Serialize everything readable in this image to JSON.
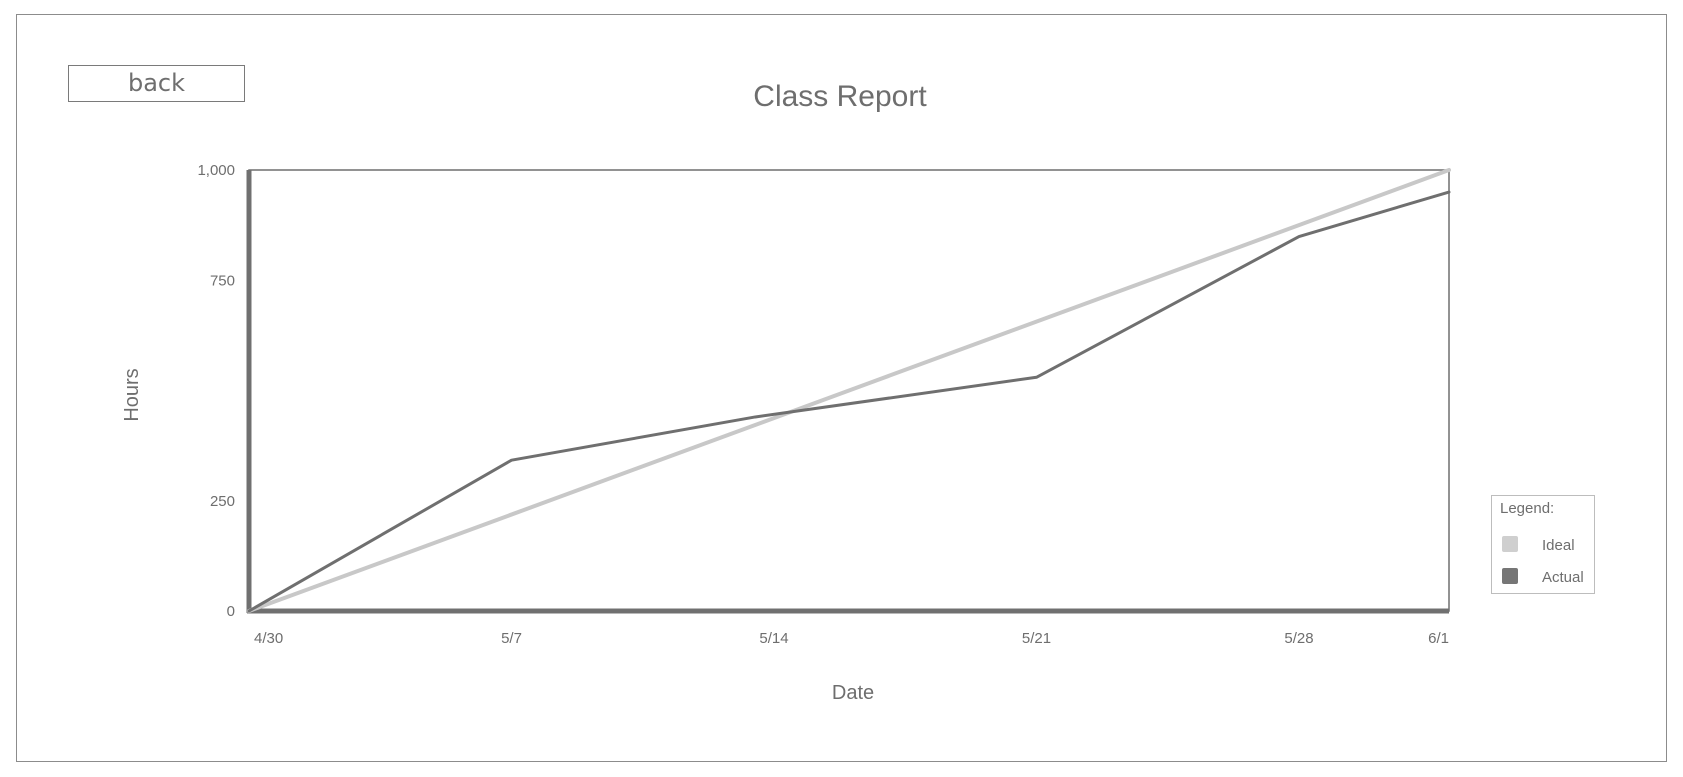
{
  "back_button": {
    "label": "back"
  },
  "chart_data": {
    "type": "line",
    "title": "Class Report",
    "xlabel": "Date",
    "ylabel": "Hours",
    "x": [
      "4/30",
      "5/7",
      "5/14",
      "5/21",
      "5/28",
      "6/1"
    ],
    "x_days": [
      0,
      7,
      14,
      21,
      28,
      32
    ],
    "y_tick_values": [
      0,
      250,
      750,
      1000
    ],
    "y_tick_labels": [
      "0",
      "250",
      "750",
      "1,000"
    ],
    "ylim": [
      0,
      1000
    ],
    "grid": false,
    "legend_position": "right",
    "legend_title": "Legend:",
    "series": [
      {
        "name": "Ideal",
        "color": "#c8c8c8",
        "points": [
          [
            0,
            0
          ],
          [
            32,
            1000
          ]
        ]
      },
      {
        "name": "Actual",
        "color": "#6f6f6f",
        "points": [
          [
            0,
            0
          ],
          [
            7,
            342
          ],
          [
            13.5,
            440
          ],
          [
            21,
            530
          ],
          [
            28,
            849
          ],
          [
            32,
            950
          ]
        ]
      }
    ]
  }
}
